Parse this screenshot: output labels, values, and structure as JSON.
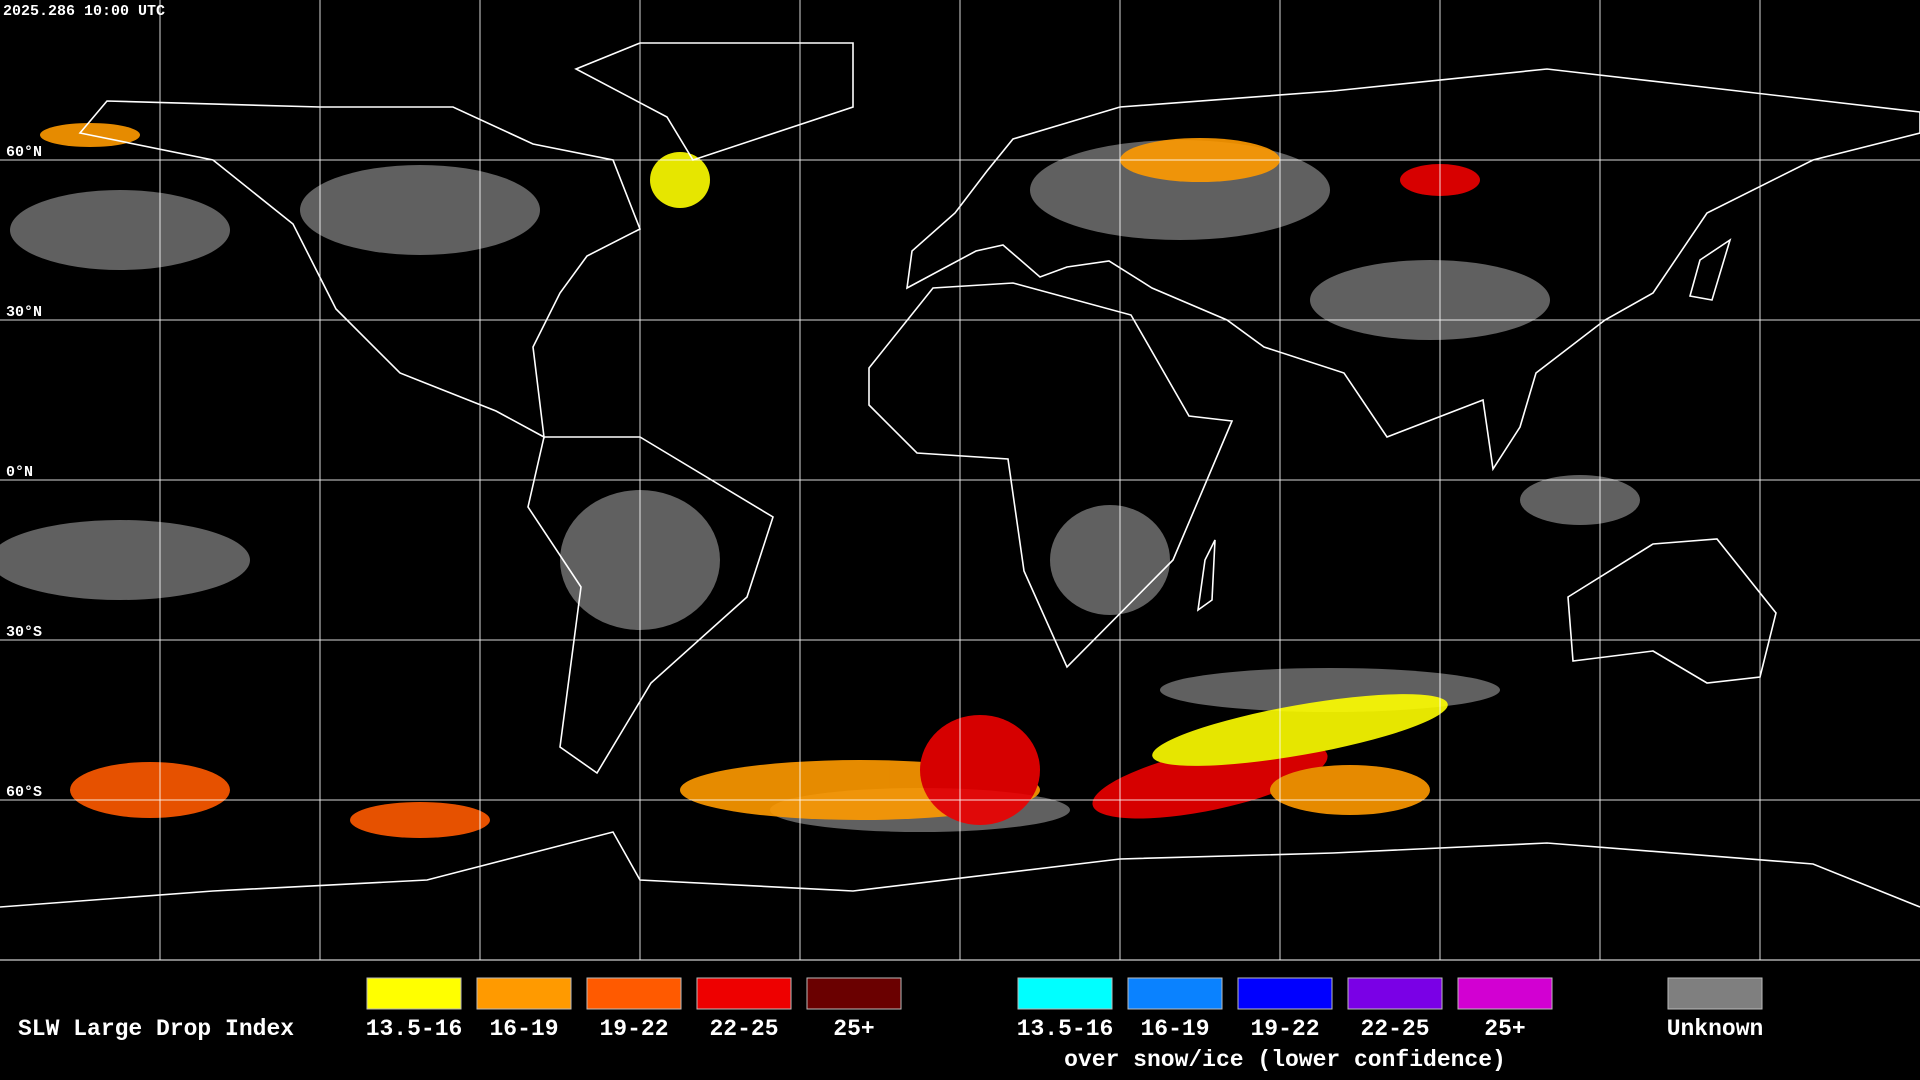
{
  "header": {
    "timestamp": "2025.286 10:00 UTC"
  },
  "map": {
    "latitude_labels": [
      "60°N",
      "30°N",
      "0°N",
      "30°S",
      "60°S"
    ]
  },
  "legend": {
    "title": "SLW Large Drop Index",
    "groups": [
      {
        "items": [
          {
            "label": "13.5-16",
            "color": "#ffff00"
          },
          {
            "label": "16-19",
            "color": "#ff9a00"
          },
          {
            "label": "19-22",
            "color": "#ff5a00"
          },
          {
            "label": "22-25",
            "color": "#ee0000"
          },
          {
            "label": "25+",
            "color": "#6a0000"
          }
        ]
      },
      {
        "items": [
          {
            "label": "13.5-16",
            "color": "#00ffff"
          },
          {
            "label": "16-19",
            "color": "#0a82ff"
          },
          {
            "label": "19-22",
            "color": "#0000ff"
          },
          {
            "label": "22-25",
            "color": "#7a00e6"
          },
          {
            "label": "25+",
            "color": "#d200d2"
          }
        ],
        "note": "over snow/ice (lower confidence)"
      },
      {
        "items": [
          {
            "label": "Unknown",
            "color": "#7f7f7f"
          }
        ]
      }
    ]
  }
}
